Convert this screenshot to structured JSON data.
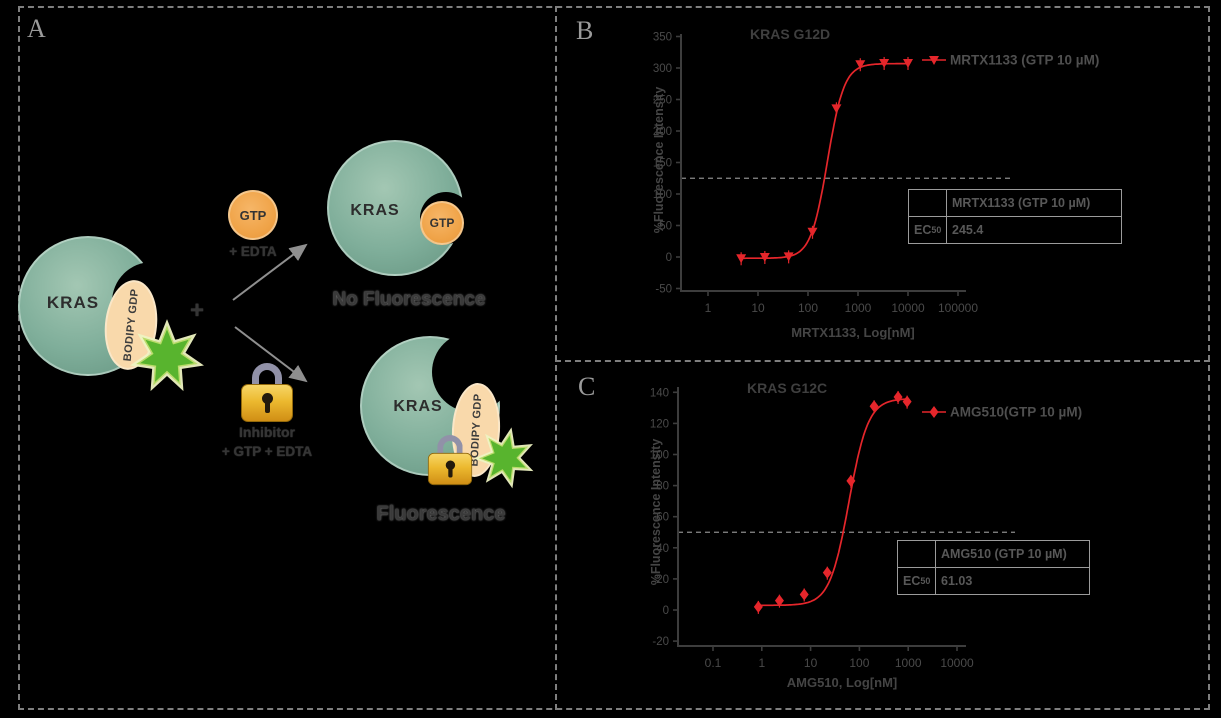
{
  "panels": {
    "a": {
      "label": "A",
      "molecule_left": {
        "protein": "KRAS",
        "tag": "BODIPY GDP"
      },
      "plus": "+",
      "gtp": {
        "label": "GTP",
        "note": "+ EDTA"
      },
      "inhibitor": {
        "label": "Inhibitor",
        "note": "+ GTP + EDTA"
      },
      "outcome_top": {
        "protein": "KRAS",
        "ligand": "GTP",
        "caption": "No Fluorescence"
      },
      "outcome_bottom": {
        "protein": "KRAS",
        "tag": "BODIPY GDP",
        "caption": "Fluorescence"
      }
    },
    "b": {
      "label": "B"
    },
    "c": {
      "label": "C"
    }
  },
  "colors": {
    "series_red": "#e5262b",
    "axis": "#3d3d3d",
    "tick_text": "#4a4a4a",
    "teal_protein": "#7fae9a",
    "orange_gtp": "#f0a449",
    "green_star": "#58b42e",
    "gold_lock": "#ecb92f"
  },
  "chart_data": [
    {
      "type": "scatter",
      "panel": "B",
      "title": "KRAS G12D",
      "xlabel": "MRTX1133, Log[nM]",
      "ylabel": "%Fluorescence Intensity",
      "x_scale": "log",
      "xlim": [
        1,
        100000
      ],
      "ylim": [
        -50,
        350
      ],
      "x_ticks": [
        1,
        10,
        100,
        1000,
        10000,
        100000
      ],
      "x_tick_labels": [
        "1",
        "10",
        "100",
        "1000",
        "10000",
        "100000"
      ],
      "y_ticks": [
        -50,
        0,
        50,
        100,
        150,
        200,
        250,
        300,
        350
      ],
      "hline_y": 125,
      "grid": false,
      "legend_position": "right-top",
      "series": [
        {
          "name": "MRTX1133 (GTP 10 µM)",
          "marker": "triangle-down",
          "color": "#e5262b",
          "x": [
            4.6,
            13.7,
            41,
            123,
            370,
            1111,
            3333,
            10000
          ],
          "y": [
            -2,
            0,
            1,
            40,
            236,
            306,
            308,
            308
          ]
        }
      ],
      "fit": {
        "bottom": -2,
        "top": 307,
        "ec50": 245.4,
        "hill": 2.6
      },
      "table": {
        "header": "MRTX1133 (GTP 10 µM)",
        "row_label_main": "EC",
        "row_label_sub": "50",
        "value": "245.4"
      }
    },
    {
      "type": "scatter",
      "panel": "C",
      "title": "KRAS G12C",
      "xlabel": "AMG510, Log[nM]",
      "ylabel": "%Fluorescence Intensity",
      "x_scale": "log",
      "xlim": [
        0.1,
        10000
      ],
      "ylim": [
        -20,
        140
      ],
      "x_ticks": [
        0.1,
        1,
        10,
        100,
        1000,
        10000
      ],
      "x_tick_labels": [
        "0.1",
        "1",
        "10",
        "100",
        "1000",
        "10000"
      ],
      "y_ticks": [
        -20,
        0,
        20,
        40,
        60,
        80,
        100,
        120,
        140
      ],
      "hline_y": 50,
      "grid": false,
      "legend_position": "right-top",
      "series": [
        {
          "name": "AMG510(GTP 10 µM)",
          "marker": "diamond",
          "color": "#e5262b",
          "x": [
            0.85,
            2.3,
            7.4,
            22,
            67,
            200,
            620,
            950
          ],
          "y": [
            2,
            6,
            10,
            24,
            83,
            131,
            137,
            134
          ]
        }
      ],
      "fit": {
        "bottom": 3,
        "top": 136,
        "ec50": 61.03,
        "hill": 2.2
      },
      "table": {
        "header": "AMG510 (GTP 10 µM)",
        "row_label_main": "EC",
        "row_label_sub": "50",
        "value": "61.03"
      }
    }
  ]
}
